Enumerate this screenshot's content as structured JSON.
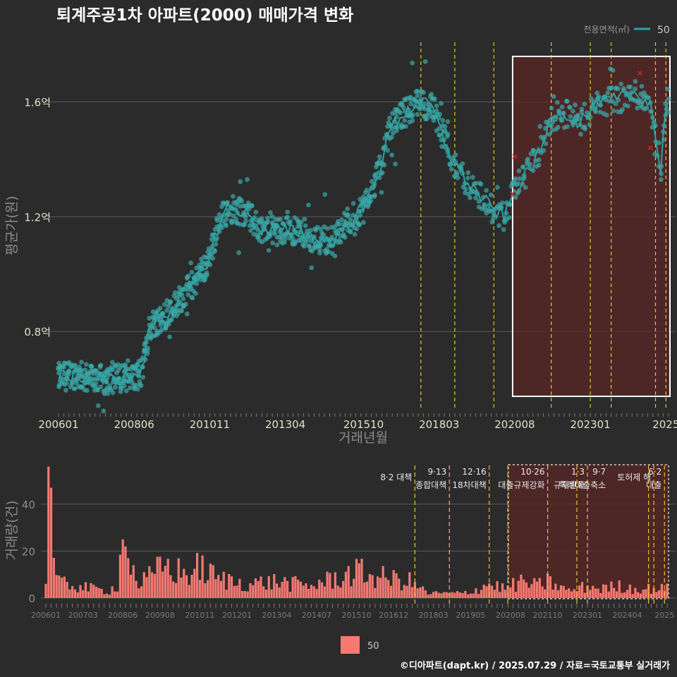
{
  "title": "퇴계주공1차 아파트(2000) 매매가격 변화",
  "footer": "©디아파트(dapt.kr) / 2025.07.29 / 자료=국토교통부 실거래가",
  "legend": {
    "title": "전용면적(㎡)",
    "item": "50",
    "bar_item": "50"
  },
  "colors": {
    "background": "#2b2b2b",
    "line": "#2fa3a3",
    "point": "#3aa8a8",
    "bar": "#f67a72",
    "policy_line": "#e8c52c",
    "highlight_fill": "#5a2626",
    "highlight_border": "#ffffff",
    "marker": "#cc2222"
  },
  "chart_data": [
    {
      "type": "line",
      "title": "퇴계주공1차 아파트(2000) 매매가격 변화",
      "xlabel": "거래년월",
      "ylabel": "평균가(원)",
      "x_tick_labels": [
        "200601",
        "200806",
        "201011",
        "201304",
        "201510",
        "201803",
        "202008",
        "202301",
        "2025"
      ],
      "x_tick_months": [
        "2006-01",
        "2008-06",
        "2010-11",
        "2013-04",
        "2015-10",
        "2018-03",
        "2020-08",
        "2023-01",
        "2025-06"
      ],
      "y_tick_labels": [
        "0.8억",
        "1.2억",
        "1.6억"
      ],
      "y_tick_values": [
        0.8,
        1.2,
        1.6
      ],
      "ylim": [
        0.53,
        1.82
      ],
      "grid": true,
      "series": [
        {
          "name": "50",
          "unit": "억",
          "points": [
            [
              "2006-01",
              0.64
            ],
            [
              "2006-07",
              0.65
            ],
            [
              "2007-01",
              0.64
            ],
            [
              "2007-07",
              0.63
            ],
            [
              "2008-01",
              0.64
            ],
            [
              "2008-06",
              0.64
            ],
            [
              "2008-09",
              0.66
            ],
            [
              "2008-12",
              0.82
            ],
            [
              "2009-06",
              0.86
            ],
            [
              "2009-12",
              0.92
            ],
            [
              "2010-06",
              0.98
            ],
            [
              "2010-11",
              1.06
            ],
            [
              "2011-03",
              1.19
            ],
            [
              "2011-06",
              1.23
            ],
            [
              "2011-12",
              1.22
            ],
            [
              "2012-06",
              1.16
            ],
            [
              "2012-12",
              1.15
            ],
            [
              "2013-04",
              1.15
            ],
            [
              "2013-10",
              1.15
            ],
            [
              "2014-04",
              1.12
            ],
            [
              "2014-10",
              1.12
            ],
            [
              "2015-04",
              1.18
            ],
            [
              "2015-10",
              1.23
            ],
            [
              "2016-04",
              1.36
            ],
            [
              "2016-08",
              1.5
            ],
            [
              "2016-12",
              1.55
            ],
            [
              "2017-06",
              1.59
            ],
            [
              "2017-12",
              1.59
            ],
            [
              "2018-03",
              1.51
            ],
            [
              "2018-08",
              1.4
            ],
            [
              "2019-01",
              1.33
            ],
            [
              "2019-06",
              1.28
            ],
            [
              "2019-12",
              1.22
            ],
            [
              "2020-04",
              1.2
            ],
            [
              "2020-08",
              1.29
            ],
            [
              "2020-12",
              1.34
            ],
            [
              "2021-06",
              1.43
            ],
            [
              "2021-10",
              1.55
            ],
            [
              "2022-03",
              1.56
            ],
            [
              "2022-09",
              1.53
            ],
            [
              "2023-01",
              1.57
            ],
            [
              "2023-06",
              1.6
            ],
            [
              "2023-12",
              1.61
            ],
            [
              "2024-06",
              1.63
            ],
            [
              "2024-12",
              1.6
            ],
            [
              "2025-04",
              1.36
            ],
            [
              "2025-06",
              1.6
            ]
          ]
        }
      ],
      "policy_lines": [
        "2017-08",
        "2018-09",
        "2019-12",
        "2021-10",
        "2023-01",
        "2023-09",
        "2025-02",
        "2025-06"
      ],
      "highlight_range": [
        "2020-08",
        "2025-07"
      ]
    },
    {
      "type": "bar",
      "ylabel": "거래량(건)",
      "y_tick_labels": [
        "0",
        "20",
        "40"
      ],
      "y_tick_values": [
        0,
        20,
        40
      ],
      "ylim": [
        0,
        58
      ],
      "x_tick_labels": [
        "200601",
        "200703",
        "200806",
        "200908",
        "201011",
        "201201",
        "201304",
        "201407",
        "201510",
        "201612",
        "201803",
        "201905",
        "202008",
        "202110",
        "202301",
        "202404",
        "2025"
      ],
      "x_tick_months": [
        "2006-01",
        "2007-03",
        "2008-06",
        "2009-08",
        "2010-11",
        "2012-01",
        "2013-04",
        "2014-07",
        "2015-10",
        "2016-12",
        "2018-03",
        "2019-05",
        "2020-08",
        "2021-10",
        "2023-01",
        "2024-04",
        "2025-06"
      ],
      "series": [
        {
          "name": "50",
          "monthly_profile": [
            [
              "2006-01",
              8
            ],
            [
              "2006-02",
              56
            ],
            [
              "2006-03",
              47
            ],
            [
              "2006-04",
              13
            ],
            [
              "2006-06",
              6
            ],
            [
              "2006-10",
              6
            ],
            [
              "2007-06",
              4
            ],
            [
              "2008-01",
              3
            ],
            [
              "2008-04",
              6
            ],
            [
              "2008-06",
              25
            ],
            [
              "2008-07",
              22
            ],
            [
              "2008-08",
              17
            ],
            [
              "2008-12",
              6
            ],
            [
              "2009-06",
              10
            ],
            [
              "2009-09",
              14
            ],
            [
              "2010-01",
              12
            ],
            [
              "2010-06",
              10
            ],
            [
              "2010-11",
              13
            ],
            [
              "2011-06",
              8
            ],
            [
              "2012-06",
              6
            ],
            [
              "2013-04",
              7
            ],
            [
              "2014-04",
              5
            ],
            [
              "2015-01",
              8
            ],
            [
              "2015-10",
              11
            ],
            [
              "2016-06",
              9
            ],
            [
              "2017-06",
              7
            ],
            [
              "2018-01",
              2
            ],
            [
              "2018-06",
              2
            ],
            [
              "2019-01",
              2
            ],
            [
              "2019-06",
              3
            ],
            [
              "2019-12",
              6
            ],
            [
              "2020-06",
              4
            ],
            [
              "2020-08",
              5
            ],
            [
              "2021-01",
              7
            ],
            [
              "2021-06",
              5
            ],
            [
              "2021-10",
              7
            ],
            [
              "2022-06",
              3
            ],
            [
              "2023-01",
              5
            ],
            [
              "2023-06",
              4
            ],
            [
              "2024-01",
              5
            ],
            [
              "2024-06",
              4
            ],
            [
              "2025-01",
              4
            ],
            [
              "2025-06",
              4
            ]
          ]
        }
      ],
      "policy_lines": [
        "2017-08",
        "2018-09",
        "2019-12",
        "2020-07",
        "2021-10",
        "2022-09",
        "2023-01",
        "2024-12",
        "2025-02",
        "2025-06"
      ],
      "highlight_range": [
        "2020-08",
        "2025-07"
      ],
      "annotations": [
        {
          "month": "2017-08",
          "line1": "",
          "line2": "8·2 대책"
        },
        {
          "month": "2018-09",
          "line1": "9·13",
          "line2": "종합대책"
        },
        {
          "month": "2019-12",
          "line1": "12·16",
          "line2": "18차대책"
        },
        {
          "month": "2021-10",
          "line1": "10·26",
          "line2": "대출규제강화"
        },
        {
          "month": "2023-01",
          "line1": "1·3",
          "line2": "규제완화"
        },
        {
          "month": "2023-09",
          "line1": "9·7",
          "line2": "특례대출축소"
        },
        {
          "month": "2025-02",
          "line1": "",
          "line2": "토허제 해"
        },
        {
          "month": "2025-06",
          "line1": "6·2",
          "line2": "대출"
        }
      ]
    }
  ]
}
